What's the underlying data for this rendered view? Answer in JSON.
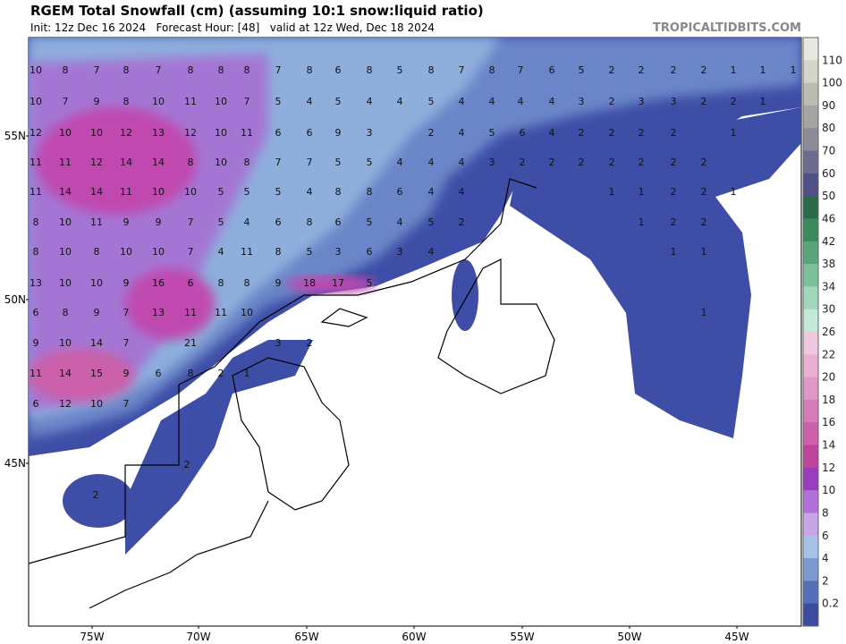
{
  "header": {
    "title": "RGEM Total Snowfall (cm) (assuming 10:1 snow:liquid ratio)",
    "subtitle": "Init: 12z Dec 16 2024   Forecast Hour: [48]   valid at 12z Wed, Dec 18 2024",
    "watermark": "TROPICALTIDBITS.COM"
  },
  "latitudes": [
    "55N",
    "50N",
    "45N"
  ],
  "longitudes": [
    "75W",
    "70W",
    "65W",
    "60W",
    "55W",
    "50W",
    "45W"
  ],
  "colorbar": {
    "labels": [
      "110",
      "100",
      "90",
      "80",
      "70",
      "60",
      "50",
      "46",
      "42",
      "38",
      "34",
      "30",
      "26",
      "22",
      "20",
      "18",
      "16",
      "14",
      "12",
      "10",
      "8",
      "6",
      "4",
      "2",
      "0.2"
    ],
    "colors": [
      "#e8e8e0",
      "#d4d4c8",
      "#bcbcb0",
      "#a4a4a0",
      "#8c8c98",
      "#6c6c90",
      "#505088",
      "#2a6a4a",
      "#3a8a5e",
      "#5aa67a",
      "#7cc09a",
      "#a0d6ba",
      "#c6e8d8",
      "#f0c8e0",
      "#eab0d4",
      "#e096c6",
      "#d67cb8",
      "#cc60aa",
      "#c0449c",
      "#9a3cc0",
      "#b070d8",
      "#c8a4e8",
      "#a6c2e6",
      "#7c9ad0",
      "#5470b8",
      "#3c4ca0"
    ]
  },
  "map_labels": [
    [
      10,
      8,
      7,
      8,
      7,
      8,
      8,
      8,
      7,
      8,
      6,
      8,
      5,
      8,
      7,
      8,
      7,
      6,
      5,
      2,
      2,
      2,
      2,
      1,
      1,
      1
    ],
    [
      10,
      7,
      9,
      8,
      10,
      11,
      10,
      7,
      5,
      4,
      5,
      4,
      4,
      5,
      4,
      4,
      4,
      4,
      3,
      2,
      3,
      3,
      2,
      2,
      1
    ],
    [
      12,
      10,
      10,
      12,
      13,
      12,
      10,
      11,
      6,
      6,
      9,
      3,
      2,
      4,
      5,
      6,
      4,
      2,
      2,
      2,
      2,
      1
    ],
    [
      11,
      11,
      12,
      14,
      14,
      8,
      10,
      8,
      7,
      7,
      5,
      5,
      4,
      4,
      4,
      3,
      2,
      2,
      2,
      2,
      2,
      2,
      2
    ],
    [
      11,
      14,
      14,
      11,
      10,
      10,
      5,
      5,
      5,
      4,
      8,
      8,
      6,
      4,
      4,
      1,
      1,
      2,
      2,
      1
    ],
    [
      8,
      10,
      11,
      9,
      9,
      7,
      5,
      4,
      6,
      8,
      6,
      5,
      4,
      5,
      2,
      1,
      2,
      2
    ],
    [
      8,
      10,
      8,
      10,
      10,
      7,
      4,
      11,
      8,
      5,
      3,
      6,
      3,
      4,
      1,
      1
    ],
    [
      13,
      10,
      10,
      9,
      16,
      6,
      8,
      8,
      9,
      18,
      17,
      5
    ],
    [
      6,
      8,
      9,
      7,
      13,
      11,
      11,
      10,
      1
    ],
    [
      9,
      10,
      14,
      7,
      21,
      3,
      2
    ],
    [
      11,
      14,
      15,
      9,
      6,
      8,
      2,
      1
    ],
    [
      6,
      12,
      10,
      7
    ],
    [
      2,
      2
    ]
  ]
}
